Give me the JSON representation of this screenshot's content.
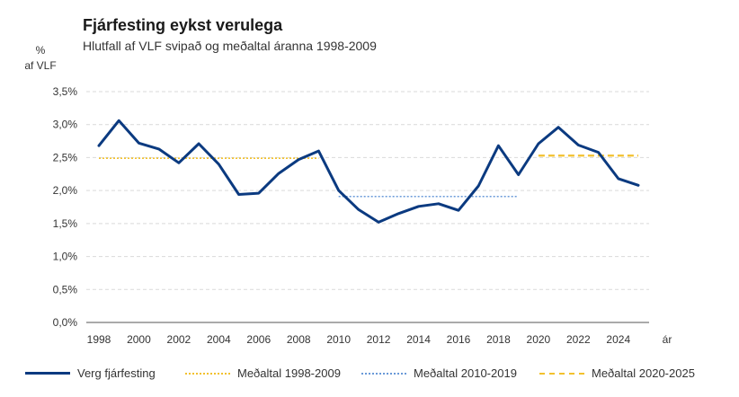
{
  "title": "Fjárfesting eykst verulega",
  "subtitle": "Hlutfall af VLF svipað og meðaltal áranna 1998-2009",
  "yunit_line1": "%",
  "yunit_line2": "af VLF",
  "xunit": "ár",
  "colors": {
    "series": "#0b3a80",
    "avg1": "#f2c12e",
    "avg2": "#6a9ad8",
    "avg3": "#f2c12e",
    "grid": "#d9d9d9"
  },
  "chart_data": {
    "type": "line",
    "title": "Fjárfesting eykst verulega",
    "subtitle": "Hlutfall af VLF svipað og meðaltal áranna 1998-2009",
    "xlabel": "ár",
    "ylabel": "% af VLF",
    "ylim": [
      0,
      3.5
    ],
    "yticks": [
      "0,0%",
      "0,5%",
      "1,0%",
      "1,5%",
      "2,0%",
      "2,5%",
      "3,0%",
      "3,5%"
    ],
    "xticks": [
      "1998",
      "2000",
      "2002",
      "2004",
      "2006",
      "2008",
      "2010",
      "2012",
      "2014",
      "2016",
      "2018",
      "2020",
      "2022",
      "2024"
    ],
    "xlim": [
      1998,
      2025
    ],
    "grid": "horizontal dashed",
    "legend_position": "bottom",
    "series": [
      {
        "name": "Verg fjárfesting",
        "x": [
          1998,
          1999,
          2000,
          2001,
          2002,
          2003,
          2004,
          2005,
          2006,
          2007,
          2008,
          2009,
          2010,
          2011,
          2012,
          2013,
          2014,
          2015,
          2016,
          2017,
          2018,
          2019,
          2020,
          2021,
          2022,
          2023,
          2024,
          2025
        ],
        "values": [
          2.68,
          3.06,
          2.72,
          2.63,
          2.42,
          2.71,
          2.4,
          1.94,
          1.96,
          2.26,
          2.47,
          2.6,
          2.0,
          1.71,
          1.52,
          1.65,
          1.76,
          1.8,
          1.7,
          2.07,
          2.68,
          2.24,
          2.71,
          2.96,
          2.69,
          2.58,
          2.18,
          2.08
        ]
      },
      {
        "name": "Meðaltal 1998-2009",
        "x": [
          1998,
          2009
        ],
        "values": [
          2.49,
          2.49
        ]
      },
      {
        "name": "Meðaltal 2010-2019",
        "x": [
          2010,
          2019
        ],
        "values": [
          1.91,
          1.91
        ]
      },
      {
        "name": "Meðaltal 2020-2025",
        "x": [
          2020,
          2025
        ],
        "values": [
          2.53,
          2.53
        ]
      }
    ]
  }
}
